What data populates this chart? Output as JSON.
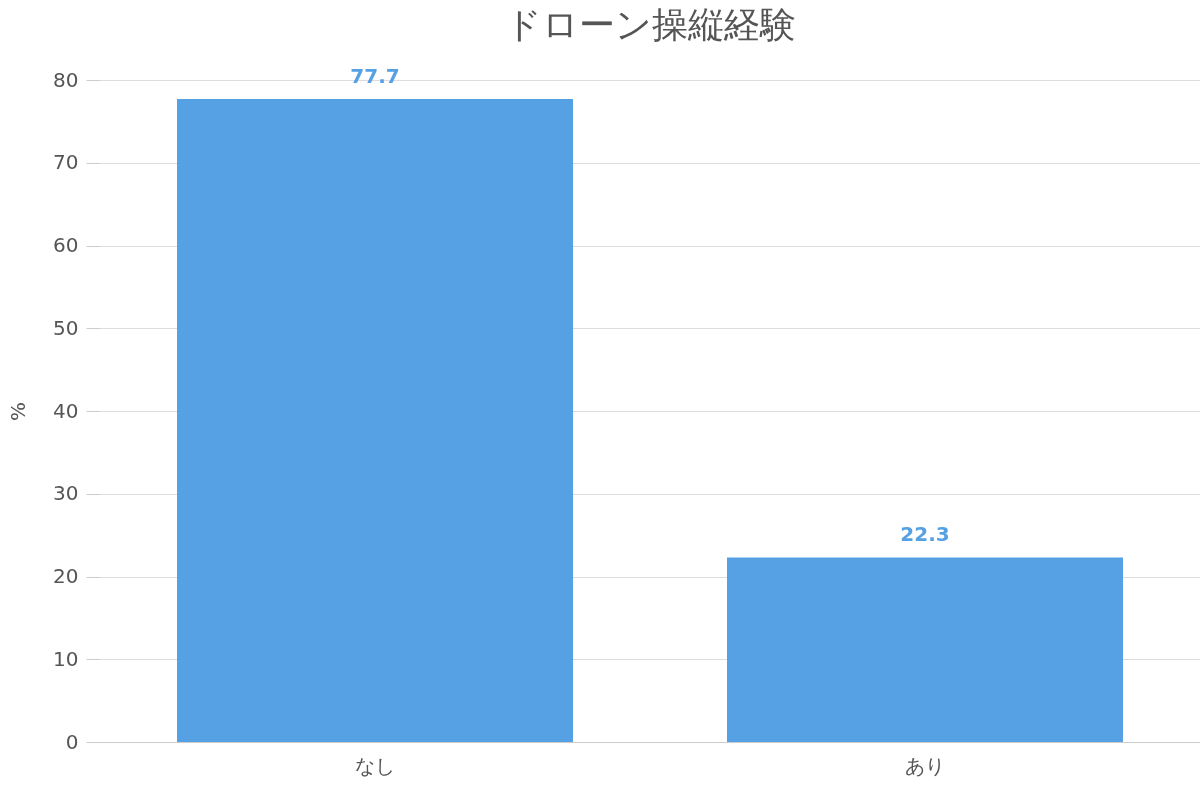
{
  "chart_data": {
    "type": "bar",
    "title": "ドローン操縦経験",
    "ylabel": "%",
    "categories": [
      "なし",
      "あり"
    ],
    "values": [
      77.7,
      22.3
    ],
    "color": "#56a0e4",
    "ylim": [
      0,
      80
    ],
    "yticks": [
      0,
      10,
      20,
      30,
      40,
      50,
      60,
      70,
      80
    ],
    "grid": "y",
    "data_labels": true
  }
}
